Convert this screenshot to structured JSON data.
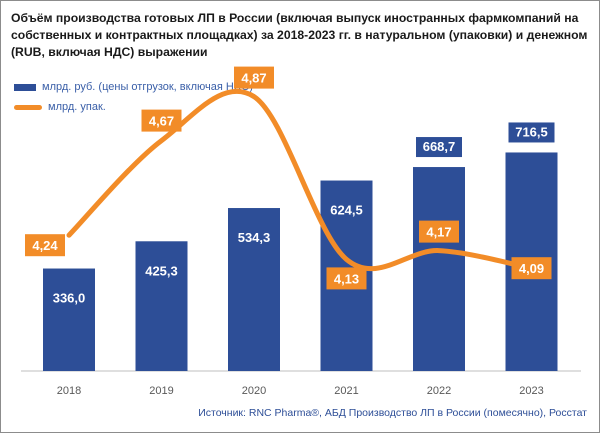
{
  "title": "Объём производства готовых ЛП в России (включая выпуск иностранных фармкомпаний на собственных и контрактных площадках) за 2018-2023 гг. в натуральном (упаковки) и денежном (RUB, включая НДС) выражении",
  "source": "Источник: RNC Pharma®, АБД Производство ЛП в России (помесячно), Росстат",
  "colors": {
    "bar": "#2d4e97",
    "line": "#f28c28",
    "bar_label_box": "#2d4e97",
    "line_label_box": "#f28c28"
  },
  "chart_data": {
    "type": "bar",
    "categories": [
      "2018",
      "2019",
      "2020",
      "2021",
      "2022",
      "2023"
    ],
    "series": [
      {
        "name": "млрд. руб. (цены отгрузок, включая НДС)",
        "type": "bar",
        "values": [
          336.0,
          425.3,
          534.3,
          624.5,
          668.7,
          716.5
        ],
        "labels": [
          "336,0",
          "425,3",
          "534,3",
          "624,5",
          "668,7",
          "716,5"
        ]
      },
      {
        "name": "млрд. упак.",
        "type": "line",
        "smooth": true,
        "values": [
          4.24,
          4.67,
          4.87,
          4.13,
          4.17,
          4.09
        ],
        "labels": [
          "4,24",
          "4,67",
          "4,87",
          "4,13",
          "4,17",
          "4,09"
        ]
      }
    ],
    "legend": "top-left",
    "grid": false
  }
}
